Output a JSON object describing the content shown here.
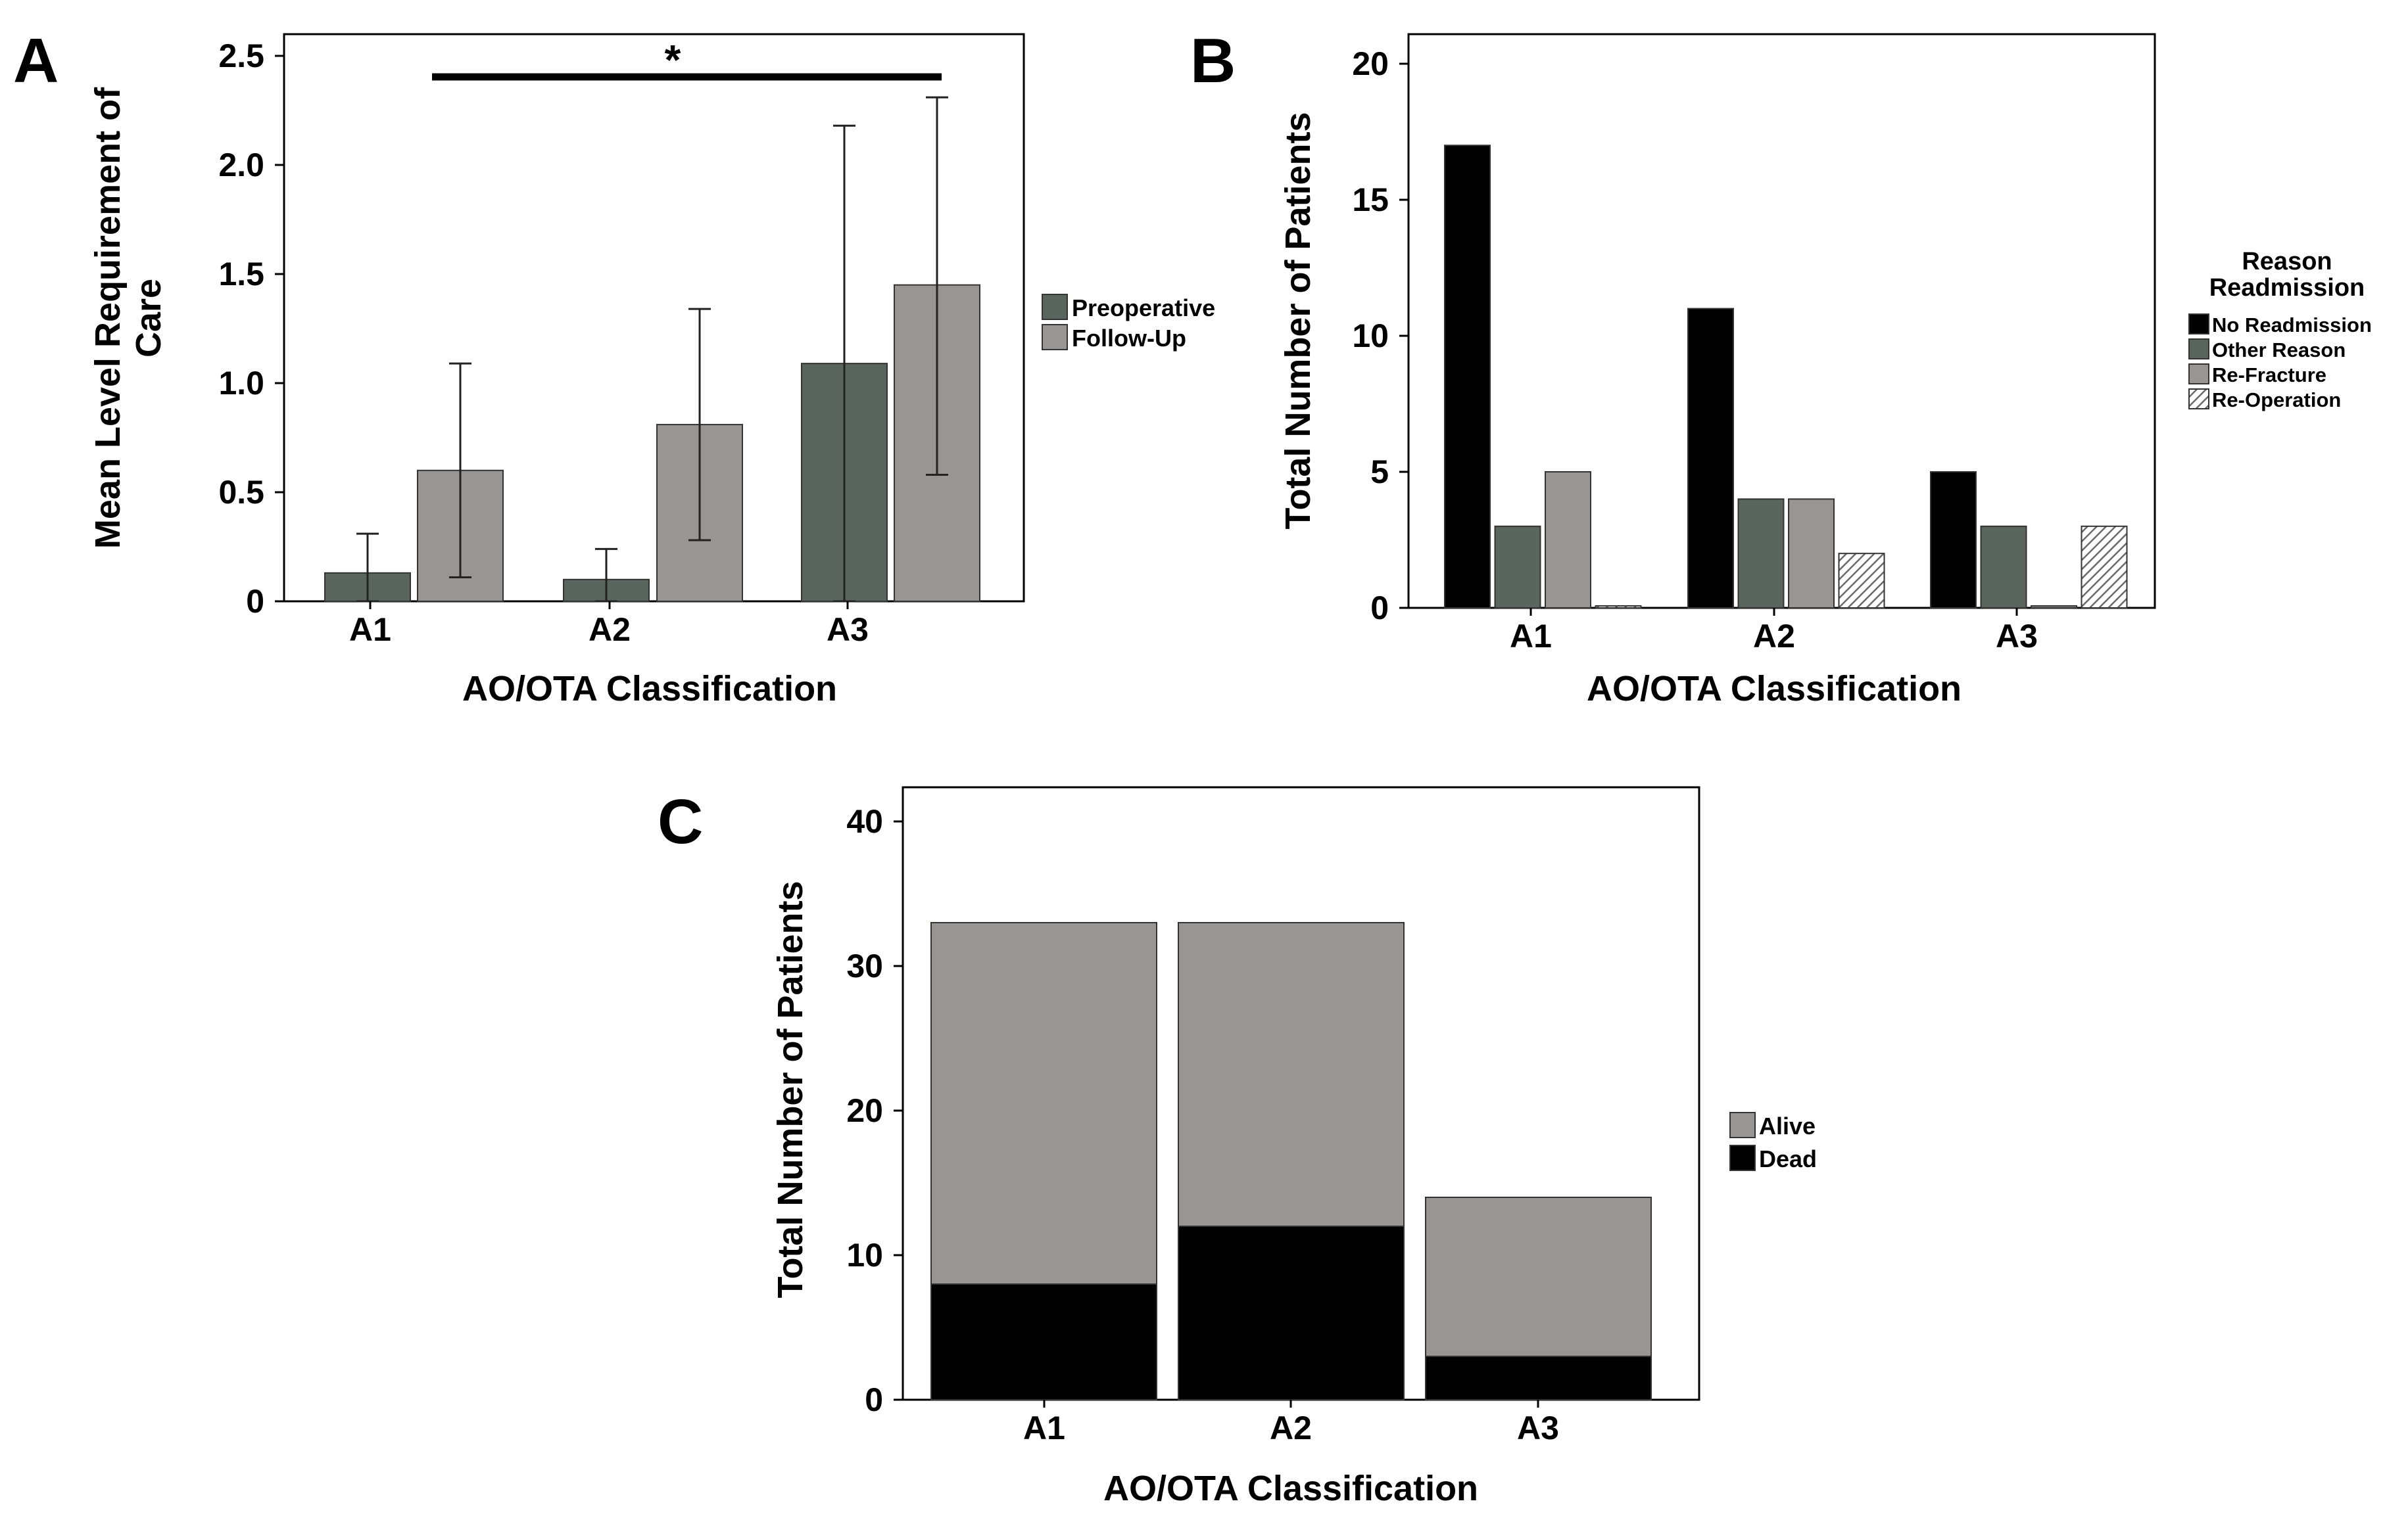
{
  "colors": {
    "preop": "#59655e",
    "followup": "#989593",
    "no_readmission": "#000000",
    "other_reason": "#59655e",
    "re_fracture": "#989593",
    "alive": "#989593",
    "dead": "#000000"
  },
  "chart_data": [
    {
      "panel": "A",
      "type": "bar",
      "categories": [
        "A1",
        "A2",
        "A3"
      ],
      "series": [
        {
          "name": "Preoperative",
          "values": [
            0.13,
            0.1,
            1.09
          ],
          "err_low": [
            0.0,
            0.0,
            0.0
          ],
          "err_high": [
            0.31,
            0.24,
            2.18
          ]
        },
        {
          "name": "Follow-Up",
          "values": [
            0.6,
            0.81,
            1.45
          ],
          "err_low": [
            0.11,
            0.28,
            0.58
          ],
          "err_high": [
            1.09,
            1.34,
            2.31
          ]
        }
      ],
      "xlabel": "AO/OTA Classification",
      "ylabel": "Mean Level Requirement of Care",
      "ylim": [
        0,
        2.6
      ],
      "yticks": [
        "0",
        "0.5",
        "1.0",
        "1.5",
        "2.0",
        "2.5"
      ],
      "significance": {
        "between": [
          "A1",
          "A3"
        ],
        "label": "*"
      }
    },
    {
      "panel": "B",
      "type": "bar",
      "categories": [
        "A1",
        "A2",
        "A3"
      ],
      "legend_title": [
        "Reason",
        "Readmission"
      ],
      "series": [
        {
          "name": "No Readmission",
          "values": [
            17,
            11,
            5
          ]
        },
        {
          "name": "Other Reason",
          "values": [
            3,
            4,
            3
          ]
        },
        {
          "name": "Re-Fracture",
          "values": [
            5,
            4,
            0
          ]
        },
        {
          "name": "Re-Operation",
          "values": [
            0,
            2,
            3
          ]
        }
      ],
      "xlabel": "AO/OTA Classification",
      "ylabel": "Total  Number of Patients",
      "ylim": [
        0,
        21
      ],
      "yticks": [
        "0",
        "5",
        "10",
        "15",
        "20"
      ]
    },
    {
      "panel": "C",
      "type": "bar",
      "stacked": true,
      "categories": [
        "A1",
        "A2",
        "A3"
      ],
      "series": [
        {
          "name": "Dead",
          "values": [
            8,
            12,
            3
          ]
        },
        {
          "name": "Alive",
          "values": [
            25,
            21,
            11
          ]
        }
      ],
      "legend_order": [
        "Alive",
        "Dead"
      ],
      "xlabel": "AO/OTA Classification",
      "ylabel": "Total Number of Patients",
      "ylim": [
        0,
        42
      ],
      "yticks": [
        "0",
        "10",
        "20",
        "30",
        "40"
      ]
    }
  ]
}
